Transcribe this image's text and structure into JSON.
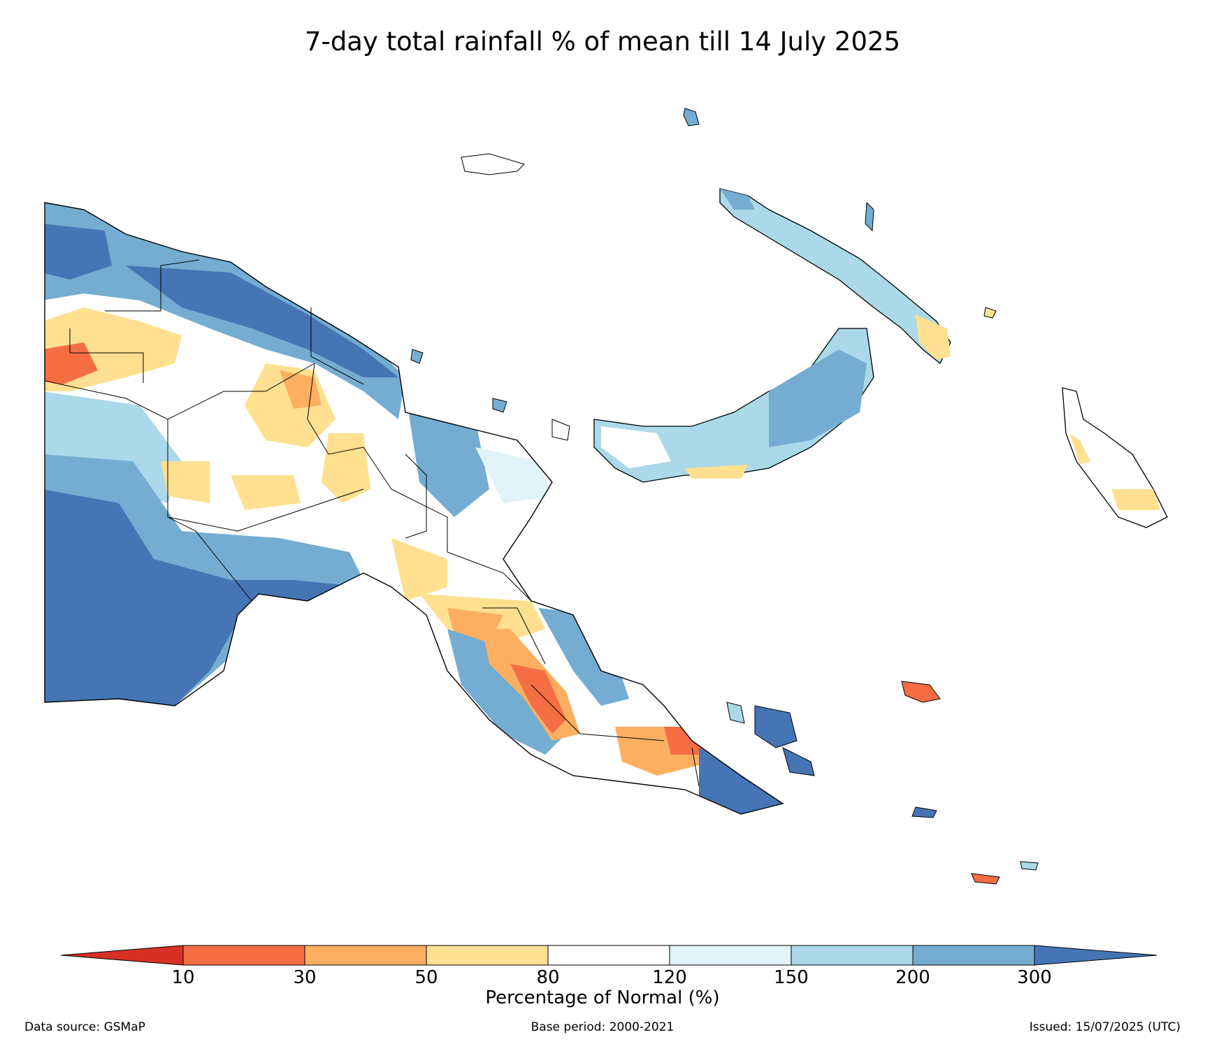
{
  "title": "7-day total rainfall % of mean till 14 July 2025",
  "colorbar": {
    "label": "Percentage of Normal (%)",
    "ticks": [
      "10",
      "30",
      "50",
      "80",
      "120",
      "150",
      "200",
      "300"
    ],
    "colors": [
      "#d73027",
      "#f46d43",
      "#fdae61",
      "#fee090",
      "#ffffff",
      "#e0f3f8",
      "#abd9e9",
      "#74add1",
      "#4575b4"
    ]
  },
  "footer": {
    "source": "Data source: GSMaP",
    "base_period": "Base period: 2000-2021",
    "issued": "Issued: 15/07/2025 (UTC)"
  }
}
